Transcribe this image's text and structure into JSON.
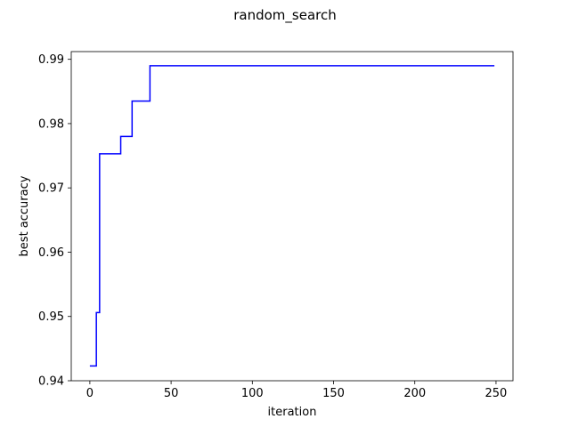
{
  "chart_data": {
    "type": "line",
    "title": "random_search",
    "xlabel": "iteration",
    "ylabel": "best accuracy",
    "xlim": [
      -11.45,
      260.45
    ],
    "ylim": [
      0.94,
      0.9912
    ],
    "xticks": [
      0,
      50,
      100,
      150,
      200,
      250
    ],
    "yticks": [
      0.94,
      0.95,
      0.96,
      0.97,
      0.98,
      0.99
    ],
    "xtick_labels": [
      "0",
      "50",
      "100",
      "150",
      "200",
      "250"
    ],
    "ytick_labels": [
      "0.94",
      "0.95",
      "0.96",
      "0.97",
      "0.98",
      "0.99"
    ],
    "grid": false,
    "series": [
      {
        "color": "#0000ff",
        "step": "post",
        "x": [
          0,
          4,
          5,
          6,
          18,
          19,
          25,
          26,
          36,
          37,
          249
        ],
        "y": [
          0.9423,
          0.9506,
          0.9506,
          0.9753,
          0.9753,
          0.978,
          0.978,
          0.9835,
          0.9835,
          0.989,
          0.989
        ]
      }
    ]
  }
}
